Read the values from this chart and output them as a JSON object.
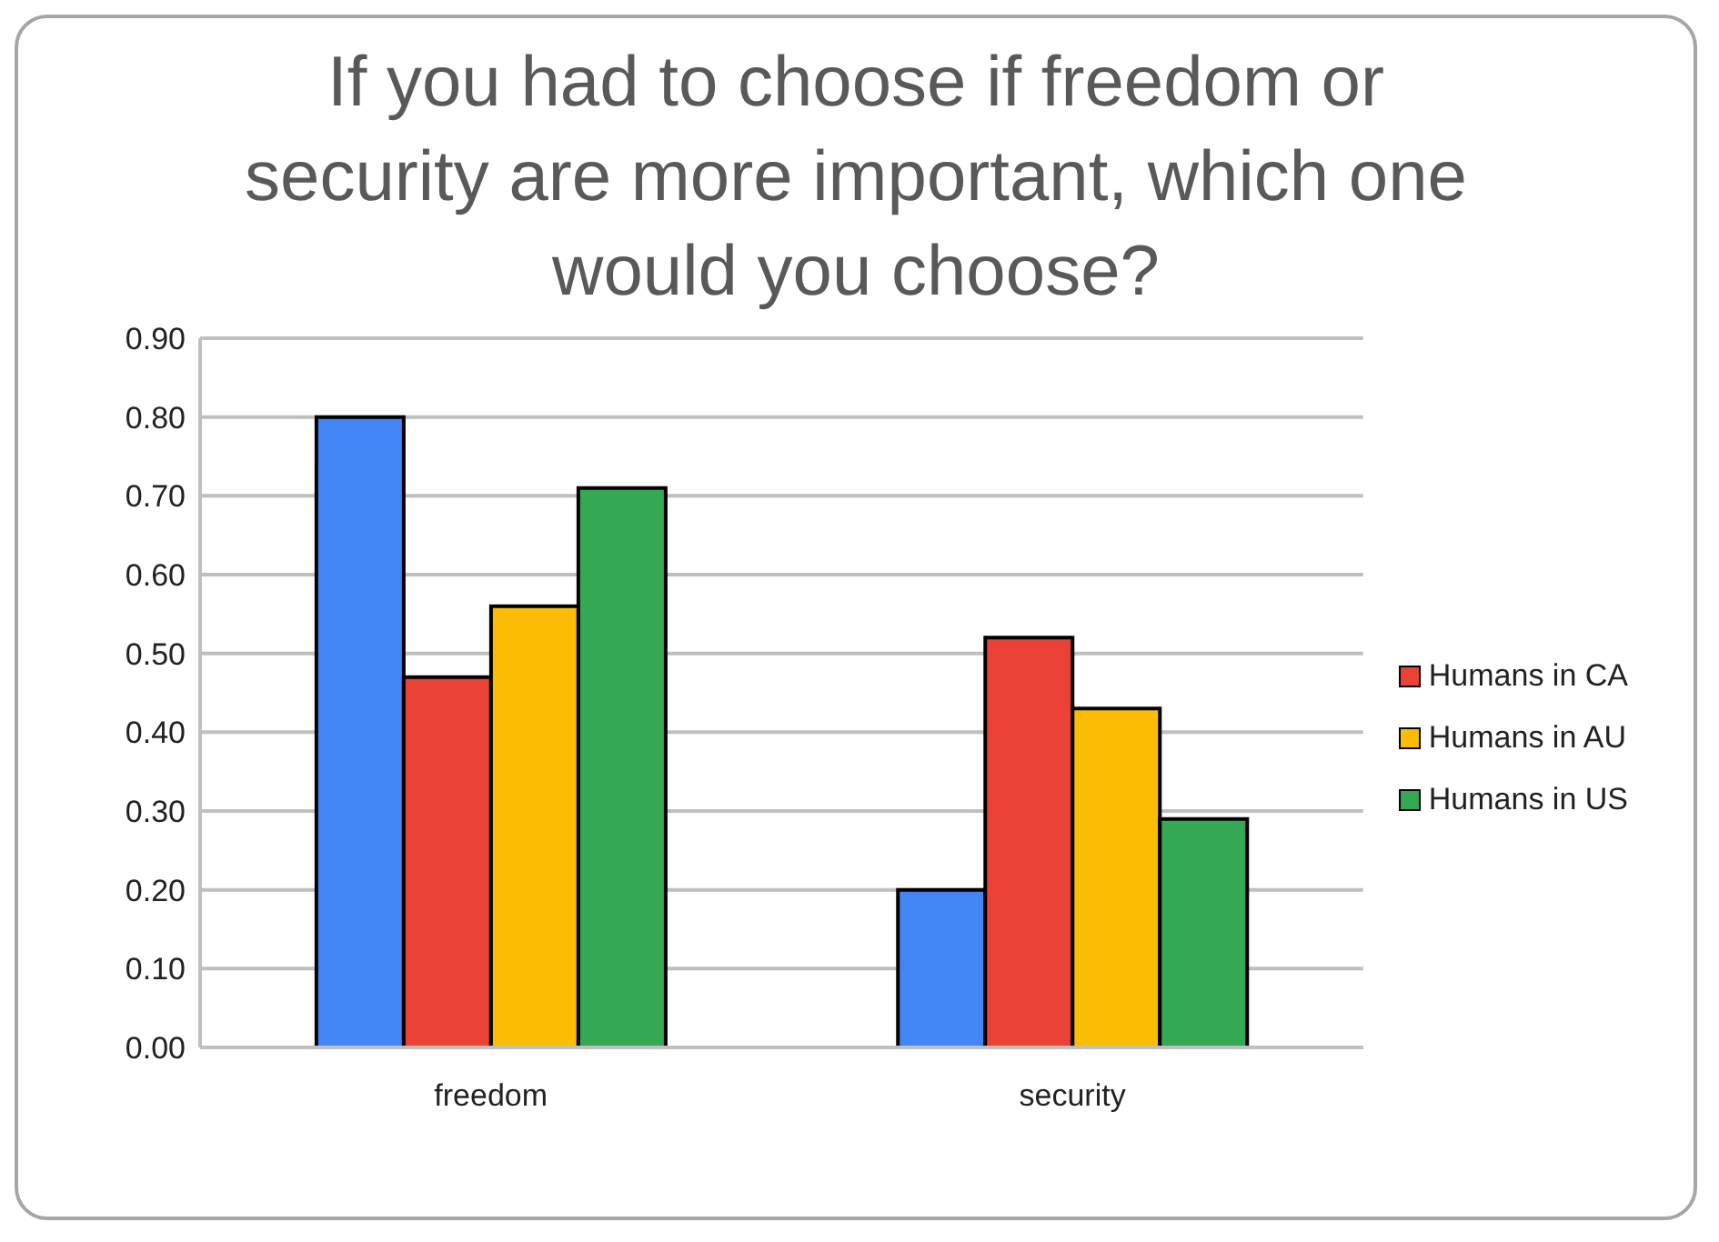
{
  "chart_data": {
    "type": "bar",
    "title": "If you had to choose if freedom or security are more important, which one would you choose?",
    "categories": [
      "freedom",
      "security"
    ],
    "series": [
      {
        "color": "#4285f4",
        "values": [
          0.8,
          0.2
        ]
      },
      {
        "name": "Humans in CA",
        "color": "#ea4335",
        "values": [
          0.47,
          0.52
        ]
      },
      {
        "name": "Humans in AU",
        "color": "#fbbc04",
        "values": [
          0.56,
          0.43
        ]
      },
      {
        "name": "Humans in US",
        "color": "#34a853",
        "values": [
          0.71,
          0.29
        ]
      }
    ],
    "ylim": [
      0,
      0.9
    ],
    "yticks": [
      {
        "value": 0,
        "label": "0.00"
      },
      {
        "value": 0.1,
        "label": "0.10"
      },
      {
        "value": 0.2,
        "label": "0.20"
      },
      {
        "value": 0.3,
        "label": "0.30"
      },
      {
        "value": 0.4,
        "label": "0.40"
      },
      {
        "value": 0.5,
        "label": "0.50"
      },
      {
        "value": 0.6,
        "label": "0.60"
      },
      {
        "value": 0.7,
        "label": "0.70"
      },
      {
        "value": 0.8,
        "label": "0.80"
      },
      {
        "value": 0.9,
        "label": "0.90"
      }
    ],
    "grid": "y",
    "legend": "right"
  }
}
